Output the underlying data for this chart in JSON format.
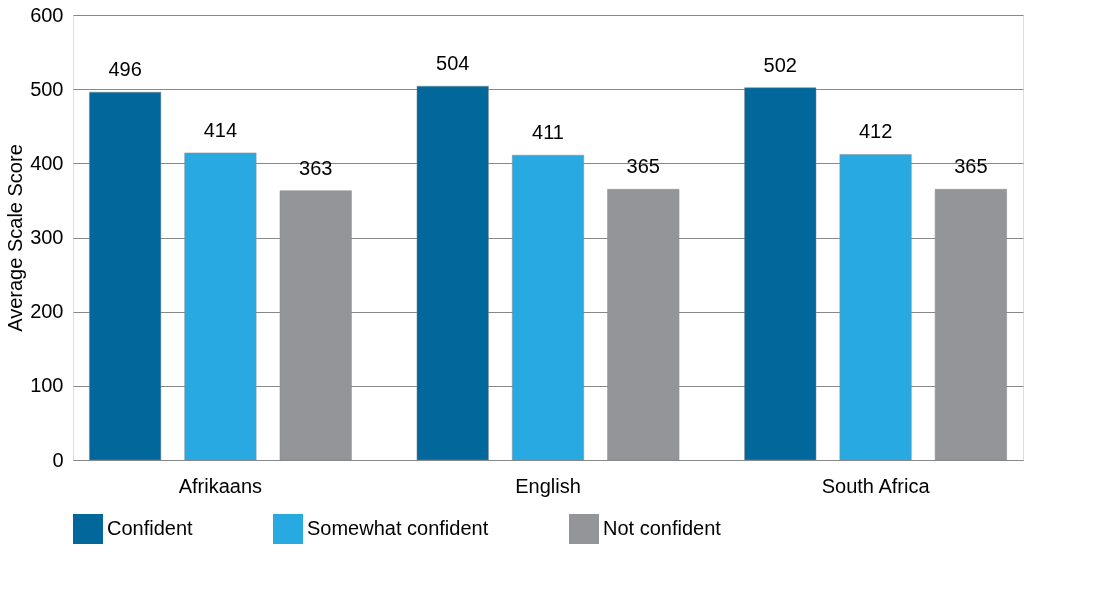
{
  "chart_data": {
    "type": "bar",
    "ylabel": "Average Scale Score",
    "categories": [
      "Afrikaans",
      "English",
      "South Africa"
    ],
    "series": [
      {
        "name": "Confident",
        "color": "#02679a",
        "values": [
          496,
          504,
          502
        ]
      },
      {
        "name": "Somewhat confident",
        "color": "#29a9e1",
        "values": [
          414,
          411,
          412
        ]
      },
      {
        "name": "Not confident",
        "color": "#939598",
        "values": [
          363,
          365,
          365
        ]
      }
    ],
    "ylim": [
      0,
      600
    ],
    "yticks": [
      0,
      100,
      200,
      300,
      400,
      500,
      600
    ],
    "grid": "y",
    "legend": "bottom",
    "data_labels": true
  }
}
